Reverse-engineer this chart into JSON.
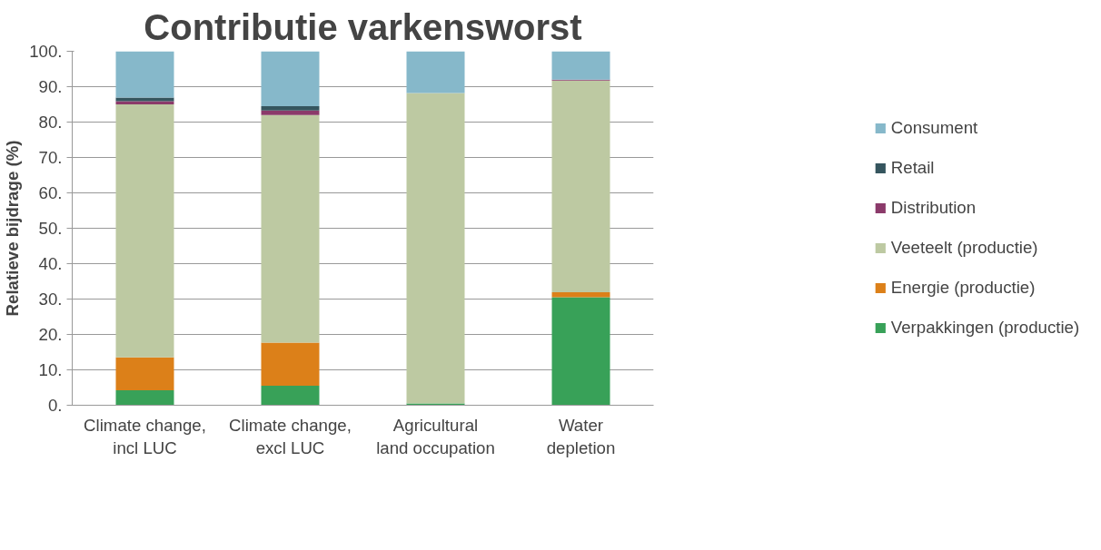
{
  "chart_data": {
    "type": "bar",
    "stacked": true,
    "title": "Contributie varkensworst",
    "ylabel": "Relatieve bijdrage (%)",
    "categories": [
      "Climate change, incl LUC",
      "Climate change, excl LUC",
      "Agricultural land occupation",
      "Water depletion"
    ],
    "series": [
      {
        "name": "Verpakkingen (productie)",
        "color": "#38a158",
        "values": [
          4.2,
          5.5,
          0.5,
          30.5
        ]
      },
      {
        "name": "Energie (productie)",
        "color": "#dc8019",
        "values": [
          9.3,
          12.2,
          0,
          1.4
        ]
      },
      {
        "name": "Veeteelt (productie)",
        "color": "#bdc9a2",
        "values": [
          71.5,
          64.3,
          87.7,
          59.8
        ]
      },
      {
        "name": "Distribution",
        "color": "#8b3a6a",
        "values": [
          0.9,
          1.3,
          0,
          0.3
        ]
      },
      {
        "name": "Retail",
        "color": "#35555e",
        "values": [
          1.0,
          1.2,
          0,
          0
        ]
      },
      {
        "name": "Consument",
        "color": "#86b8ca",
        "values": [
          13.1,
          15.5,
          11.8,
          8.0
        ]
      }
    ],
    "ylim": [
      0,
      100
    ],
    "yticks": [
      {
        "value": 0,
        "label": "0."
      },
      {
        "value": 10,
        "label": "10."
      },
      {
        "value": 20,
        "label": "20."
      },
      {
        "value": 30,
        "label": "30."
      },
      {
        "value": 40,
        "label": "40."
      },
      {
        "value": 50,
        "label": "50."
      },
      {
        "value": 60,
        "label": "60."
      },
      {
        "value": 70,
        "label": "70."
      },
      {
        "value": 80,
        "label": "80."
      },
      {
        "value": 90,
        "label": "90."
      },
      {
        "value": 100,
        "label": "100."
      }
    ],
    "grid": "y",
    "legend": "right"
  }
}
